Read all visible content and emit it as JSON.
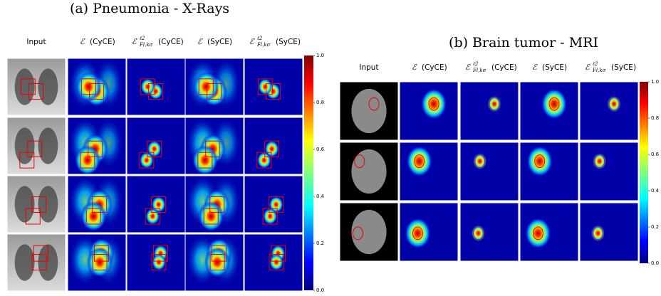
{
  "panels": [
    {
      "title": "(a) Pneumonia - X-Rays",
      "columns": [
        {
          "label": "Input"
        },
        {
          "symbol": "ℰ",
          "label": "(CyCE)"
        },
        {
          "symbol": "ℰ",
          "sup": "ℓ2",
          "sub": "Fl,kσ",
          "label": "(CyCE)"
        },
        {
          "symbol": "ℰ",
          "label": "(SyCE)"
        },
        {
          "symbol": "ℰ",
          "sup": "ℓ2",
          "sub": "Fl,kσ",
          "label": "(SyCE)"
        }
      ],
      "colorbar_ticks": [
        {
          "value": 0,
          "label": "0.0"
        },
        {
          "value": 0.2,
          "label": "0.2"
        },
        {
          "value": 0.4,
          "label": "0.4"
        },
        {
          "value": 0.6,
          "label": "0.6"
        },
        {
          "value": 0.8,
          "label": "0.8"
        },
        {
          "value": 1,
          "label": "1.0"
        }
      ]
    },
    {
      "title": "(b) Brain tumor - MRI",
      "columns": [
        {
          "label": "Input"
        },
        {
          "symbol": "ℰ",
          "label": "(CyCE)"
        },
        {
          "symbol": "ℰ",
          "sup": "ℓ2",
          "sub": "Fl,kσ",
          "label": "(CyCE)"
        },
        {
          "symbol": "ℰ",
          "label": "(SyCE)"
        },
        {
          "symbol": "ℰ",
          "sup": "ℓ2",
          "sub": "Fl,kσ",
          "label": "(SyCE)"
        }
      ],
      "colorbar_ticks": [
        {
          "value": 0,
          "label": "0.0"
        },
        {
          "value": 0.2,
          "label": "0.2"
        },
        {
          "value": 0.4,
          "label": "0.4"
        },
        {
          "value": 0.6,
          "label": "0.6"
        },
        {
          "value": 0.8,
          "label": "0.8"
        },
        {
          "value": 1,
          "label": "1.0"
        }
      ]
    }
  ]
}
